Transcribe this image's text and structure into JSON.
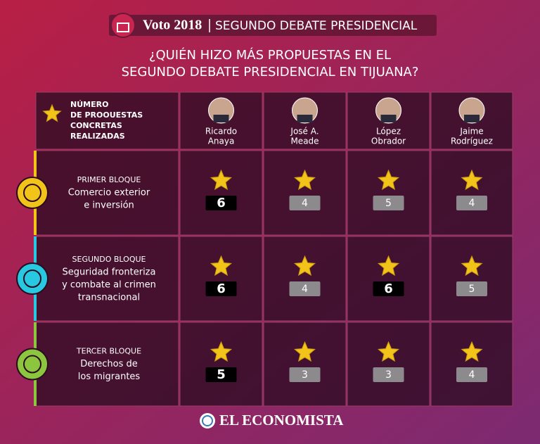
{
  "header": {
    "brand": "Voto 2018",
    "title": "SEGUNDO DEBATE PRESIDENCIAL"
  },
  "question": [
    "¿QUIÉN HIZO MÁS PROPUESTAS EN EL",
    "SEGUNDO DEBATE PRESIDENCIAL EN TIJUANA?"
  ],
  "legend": [
    "NÚMERO",
    "DE PROOUESTAS",
    "CONCRETAS",
    "REALIZADAS"
  ],
  "candidates": [
    [
      "Ricardo",
      "Anaya"
    ],
    [
      "José A.",
      "Meade"
    ],
    [
      "López",
      "Obrador"
    ],
    [
      "Jaime",
      "Rodríguez"
    ]
  ],
  "rows": [
    {
      "block": "PRIMER BLOQUE",
      "topic": [
        "Comercio exterior",
        "e inversión"
      ],
      "color": "#f2c318",
      "values": [
        6,
        4,
        5,
        4
      ]
    },
    {
      "block": "SEGUNDO BLOQUE",
      "topic": [
        "Seguridad fronteriza",
        "y combate al crimen",
        "transnacional"
      ],
      "color": "#27c8e0",
      "values": [
        6,
        4,
        6,
        5
      ]
    },
    {
      "block": "TERCER BLOQUE",
      "topic": [
        "Derechos de",
        "los migrantes"
      ],
      "color": "#8cc63f",
      "values": [
        5,
        3,
        3,
        4
      ]
    }
  ],
  "footer": "EL ECONOMISTA"
}
